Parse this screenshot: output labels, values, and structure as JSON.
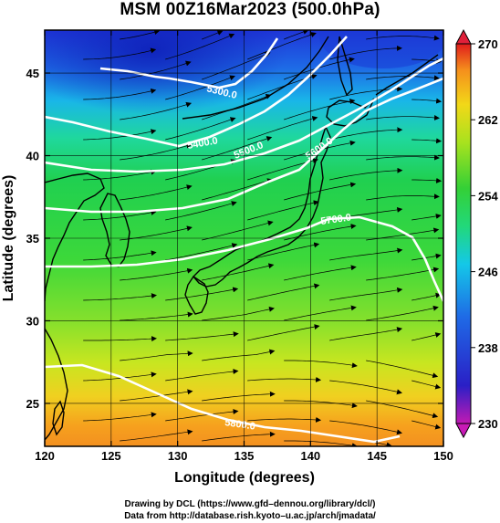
{
  "title": "MSM 00Z16Mar2023 (500.0hPa)",
  "axes": {
    "xlabel": "Longitude (degrees)",
    "ylabel": "Latitude  (degrees)",
    "xlim": [
      120,
      150
    ],
    "ylim": [
      22.4,
      47.6
    ],
    "xticks": [
      120,
      125,
      130,
      135,
      140,
      145,
      150
    ],
    "xtick_labels": [
      "120",
      "125",
      "130",
      "135",
      "140",
      "145",
      "150"
    ],
    "yticks": [
      25,
      30,
      35,
      40,
      45
    ],
    "ytick_labels": [
      "25",
      "30",
      "35",
      "40",
      "45"
    ]
  },
  "colorbar": {
    "min": 230,
    "max": 270,
    "ticks": [
      230,
      238,
      246,
      254,
      262,
      270
    ],
    "tick_labels": [
      "230",
      "238",
      "246",
      "254",
      "262",
      "270"
    ]
  },
  "contours": [
    {
      "value": 5300,
      "label": "5300.0"
    },
    {
      "value": 5400,
      "label": "5400.0"
    },
    {
      "value": 5500,
      "label": "5500.0"
    },
    {
      "value": 5600,
      "label": "5600.0"
    },
    {
      "value": 5700,
      "label": "5700.0"
    },
    {
      "value": 5800,
      "label": "5800.0"
    }
  ],
  "credits": {
    "line1": "Drawing by DCL (https://www.gfd–dennou.org/library/dcl/)",
    "line2": "Data from http://database.rish.kyoto–u.ac.jp/arch/jmadata/"
  }
}
